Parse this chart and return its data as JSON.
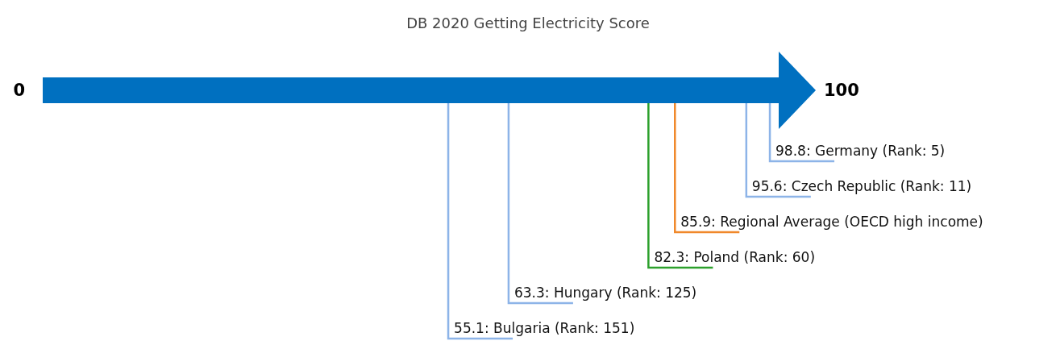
{
  "chart_data": {
    "type": "other",
    "title": "DB 2020 Getting Electricity Score",
    "categories": [
      "Germany (Rank: 5)",
      "Czech Republic (Rank: 11)",
      "Regional Average (OECD high income)",
      "Poland (Rank: 60)",
      "Hungary (Rank: 125)",
      "Bulgaria (Rank: 151)"
    ],
    "values": [
      98.8,
      95.6,
      85.9,
      82.3,
      63.3,
      55.1
    ],
    "colors": [
      "#8db4e8",
      "#8db4e8",
      "#f0882a",
      "#2ca02c",
      "#8db4e8",
      "#8db4e8"
    ],
    "color": "#0070c0",
    "annotations": [
      "0",
      "100"
    ],
    "value_labels": [
      "98.8:",
      "95.6:",
      "85.9:",
      "82.3:",
      "63.3:",
      "55.1:"
    ]
  }
}
